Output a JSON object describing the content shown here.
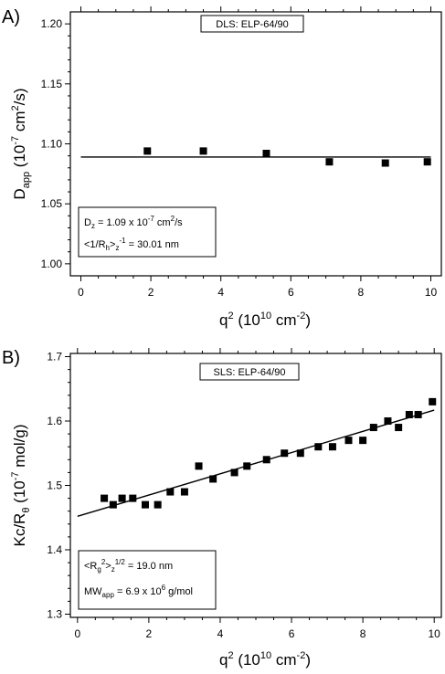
{
  "chart_data": [
    {
      "panel": "A)",
      "type": "scatter",
      "series_label": "DLS: ELP-64/90",
      "xlabel": {
        "base": "q",
        "sup": "2",
        "rest": " (10",
        "sup2": "10",
        "rest2": " cm",
        "sup3": "-2",
        "close": ")"
      },
      "ylabel": {
        "base": "D",
        "sub": "app",
        "rest": " (10",
        "sup": "-7",
        "rest2": " cm",
        "sup2": "2",
        "close": "/s)"
      },
      "xlim": [
        -0.3,
        10.3
      ],
      "ylim": [
        0.99,
        1.21
      ],
      "xticks": [
        0,
        2,
        4,
        6,
        8,
        10
      ],
      "yticks": [
        1.0,
        1.05,
        1.1,
        1.15,
        1.2
      ],
      "ytick_labels": [
        "1.00",
        "1.05",
        "1.10",
        "1.15",
        "1.20"
      ],
      "x": [
        1.9,
        3.5,
        5.3,
        7.1,
        8.7,
        9.9
      ],
      "y": [
        1.094,
        1.094,
        1.092,
        1.085,
        1.084,
        1.085
      ],
      "fit": {
        "x": [
          0.0,
          10.0
        ],
        "y": [
          1.089,
          1.089
        ]
      },
      "annotation_lines": [
        [
          "D",
          {
            "sub": "z"
          },
          " = 1.09 x 10",
          {
            "sup": "-7"
          },
          " cm",
          {
            "sup": "2"
          },
          "/s"
        ],
        [
          "<1/R",
          {
            "sub": "h"
          },
          ">",
          {
            "sub": "z"
          },
          {
            "sup": "-1"
          },
          " = 30.01 nm"
        ]
      ]
    },
    {
      "panel": "B)",
      "type": "scatter",
      "series_label": "SLS: ELP-64/90",
      "xlabel": {
        "base": "q",
        "sup": "2",
        "rest": " (10",
        "sup2": "10",
        "rest2": " cm",
        "sup3": "-2",
        "close": ")"
      },
      "ylabel": {
        "base": "Kc/R",
        "sub": "θ",
        "rest": " (10",
        "sup": "-7",
        "rest2": " mol/g)",
        "sup2": "",
        "close": ""
      },
      "xlim": [
        -0.2,
        10.2
      ],
      "ylim": [
        1.295,
        1.705
      ],
      "xticks": [
        0,
        2,
        4,
        6,
        8,
        10
      ],
      "yticks": [
        1.3,
        1.4,
        1.5,
        1.6,
        1.7
      ],
      "ytick_labels": [
        "1.3",
        "1.4",
        "1.5",
        "1.6",
        "1.7"
      ],
      "x": [
        0.75,
        1.0,
        1.25,
        1.55,
        1.9,
        2.25,
        2.6,
        3.0,
        3.4,
        3.8,
        4.4,
        4.75,
        5.3,
        5.8,
        6.25,
        6.75,
        7.15,
        7.6,
        8.0,
        8.3,
        8.7,
        9.0,
        9.3,
        9.55,
        9.95
      ],
      "y": [
        1.48,
        1.47,
        1.48,
        1.48,
        1.47,
        1.47,
        1.49,
        1.49,
        1.53,
        1.51,
        1.52,
        1.53,
        1.54,
        1.55,
        1.55,
        1.56,
        1.56,
        1.57,
        1.57,
        1.59,
        1.6,
        1.59,
        1.61,
        1.61,
        1.63
      ],
      "fit": {
        "x": [
          0.0,
          10.0
        ],
        "y": [
          1.452,
          1.617
        ]
      },
      "annotation_lines": [
        [
          "<R",
          {
            "sub": "g"
          },
          {
            "sup": "2"
          },
          ">",
          {
            "sub": "z"
          },
          {
            "sup": "1/2"
          },
          " = 19.0 nm"
        ],
        [
          "MW",
          {
            "sub": "app"
          },
          " = 6.9 x 10",
          {
            "sup": "6"
          },
          " g/mol"
        ]
      ]
    }
  ]
}
